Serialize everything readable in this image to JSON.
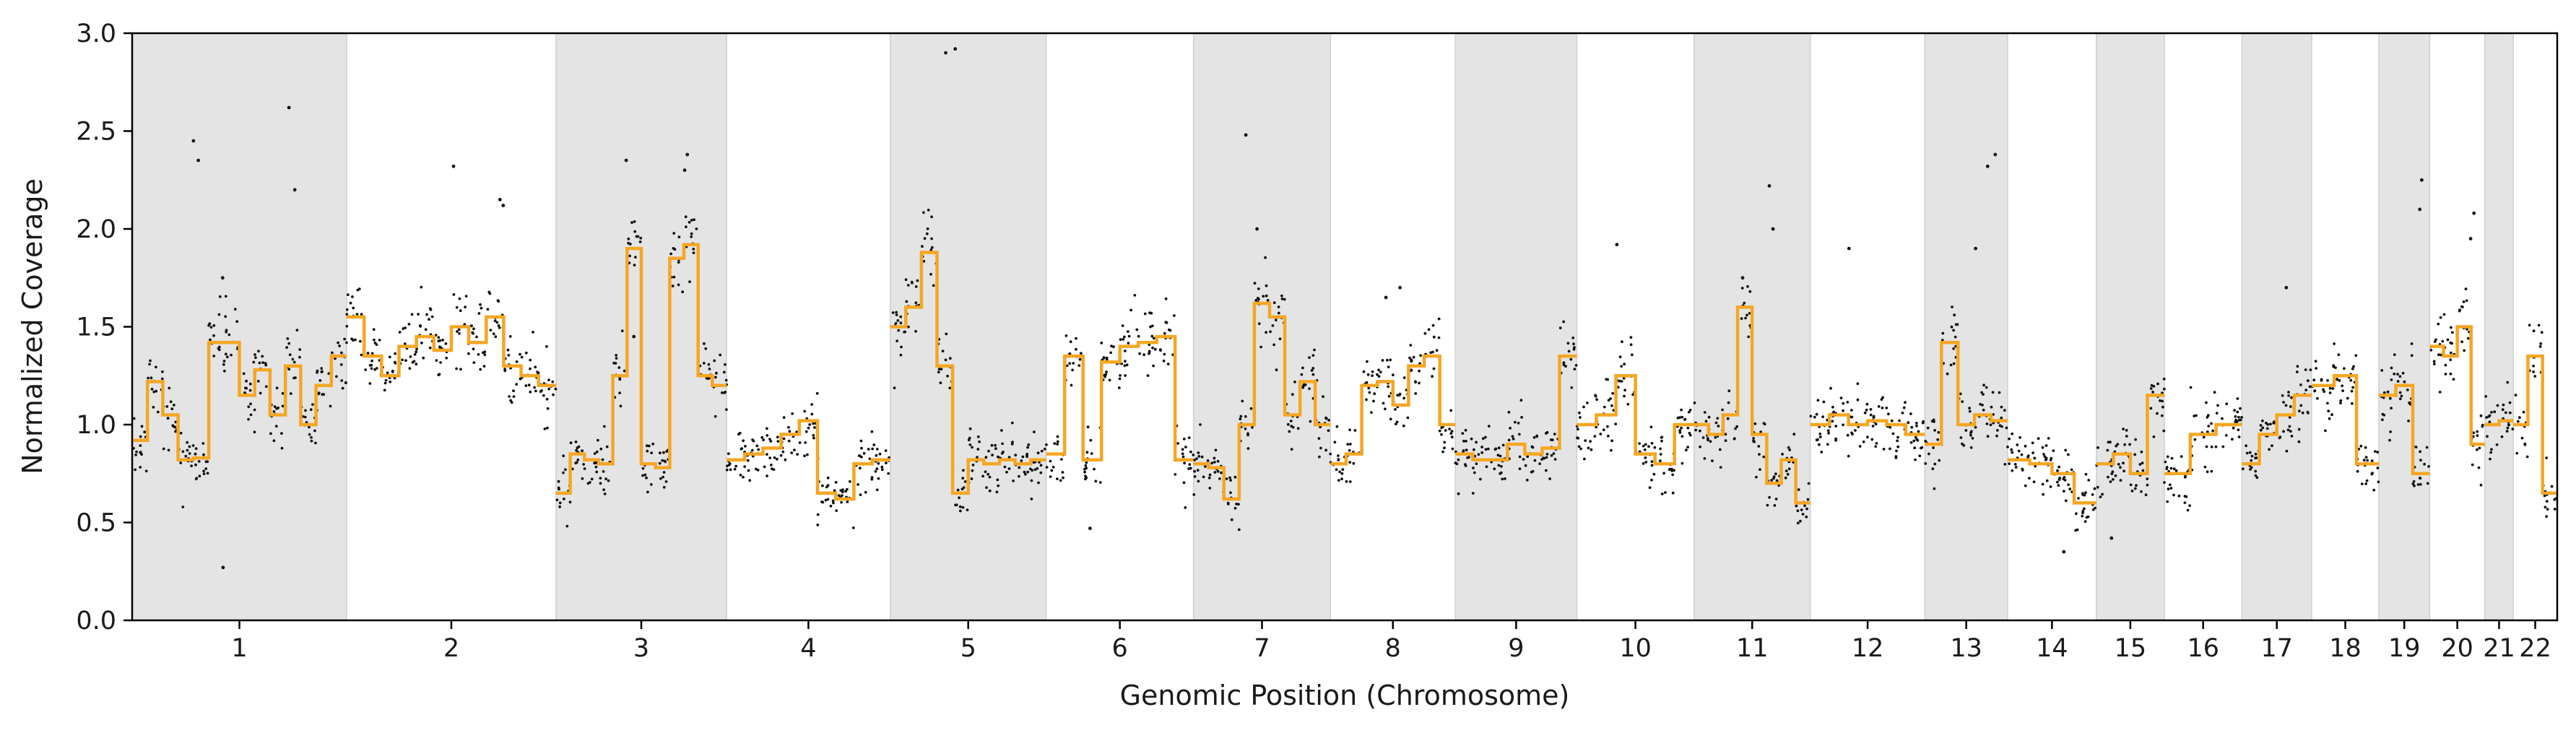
{
  "chart_data": {
    "type": "scatter",
    "xlabel": "Genomic Position (Chromosome)",
    "ylabel": "Normalized Coverage",
    "ylim": [
      0,
      3
    ],
    "y_ticks": [
      "0.0",
      "0.5",
      "1.0",
      "1.5",
      "2.0",
      "2.5",
      "3.0"
    ],
    "grid": false,
    "legend": "none",
    "colors": {
      "points": "#111111",
      "segments": "#f5a623",
      "shading": "#e4e4e4",
      "shading_border": "#cfcfcf",
      "axes": "#000000"
    },
    "chromosomes": [
      {
        "label": "1",
        "length": 249,
        "shaded": true
      },
      {
        "label": "2",
        "length": 243,
        "shaded": false
      },
      {
        "label": "3",
        "length": 198,
        "shaded": true
      },
      {
        "label": "4",
        "length": 190,
        "shaded": false
      },
      {
        "label": "5",
        "length": 181,
        "shaded": true
      },
      {
        "label": "6",
        "length": 171,
        "shaded": false
      },
      {
        "label": "7",
        "length": 159,
        "shaded": true
      },
      {
        "label": "8",
        "length": 145,
        "shaded": false
      },
      {
        "label": "9",
        "length": 141,
        "shaded": true
      },
      {
        "label": "10",
        "length": 136,
        "shaded": false
      },
      {
        "label": "11",
        "length": 135,
        "shaded": true
      },
      {
        "label": "12",
        "length": 133,
        "shaded": false
      },
      {
        "label": "13",
        "length": 96,
        "shaded": true
      },
      {
        "label": "14",
        "length": 103,
        "shaded": false
      },
      {
        "label": "15",
        "length": 79,
        "shaded": true
      },
      {
        "label": "16",
        "length": 90,
        "shaded": false
      },
      {
        "label": "17",
        "length": 81,
        "shaded": true
      },
      {
        "label": "18",
        "length": 78,
        "shaded": false
      },
      {
        "label": "19",
        "length": 59,
        "shaded": true
      },
      {
        "label": "20",
        "length": 64,
        "shaded": false
      },
      {
        "label": "21",
        "length": 33,
        "shaded": true
      },
      {
        "label": "22",
        "length": 51,
        "shaded": false
      }
    ],
    "segments": [
      {
        "chrom": "1",
        "values": [
          0.92,
          1.22,
          1.05,
          0.82,
          0.83,
          1.42,
          1.42,
          1.15,
          1.28,
          1.05,
          1.3,
          1.0,
          1.2,
          1.35
        ]
      },
      {
        "chrom": "2",
        "values": [
          1.55,
          1.35,
          1.25,
          1.4,
          1.45,
          1.38,
          1.5,
          1.42,
          1.55,
          1.3,
          1.25,
          1.2
        ]
      },
      {
        "chrom": "3",
        "values": [
          0.65,
          0.85,
          0.82,
          0.8,
          1.25,
          1.9,
          0.8,
          0.78,
          1.85,
          1.92,
          1.25,
          1.2
        ]
      },
      {
        "chrom": "4",
        "values": [
          0.82,
          0.85,
          0.88,
          0.95,
          1.02,
          0.65,
          0.62,
          0.8,
          0.82
        ]
      },
      {
        "chrom": "5",
        "values": [
          1.5,
          1.6,
          1.88,
          1.3,
          0.65,
          0.82,
          0.8,
          0.82,
          0.8,
          0.82
        ]
      },
      {
        "chrom": "6",
        "values": [
          0.85,
          1.35,
          0.82,
          1.32,
          1.4,
          1.42,
          1.45,
          0.82
        ]
      },
      {
        "chrom": "7",
        "values": [
          0.8,
          0.78,
          0.62,
          1.0,
          1.62,
          1.55,
          1.05,
          1.22,
          1.0
        ]
      },
      {
        "chrom": "8",
        "values": [
          0.8,
          0.85,
          1.2,
          1.22,
          1.1,
          1.3,
          1.35,
          1.0
        ]
      },
      {
        "chrom": "9",
        "values": [
          0.85,
          0.82,
          0.82,
          0.9,
          0.85,
          0.88,
          1.35
        ]
      },
      {
        "chrom": "10",
        "values": [
          1.0,
          1.05,
          1.25,
          0.85,
          0.8,
          1.0
        ]
      },
      {
        "chrom": "11",
        "values": [
          1.0,
          0.95,
          1.05,
          1.6,
          0.95,
          0.7,
          0.82,
          0.6
        ]
      },
      {
        "chrom": "12",
        "values": [
          1.0,
          1.05,
          1.0,
          1.02,
          1.0,
          0.95
        ]
      },
      {
        "chrom": "13",
        "values": [
          0.9,
          1.42,
          1.0,
          1.05,
          1.02
        ]
      },
      {
        "chrom": "14",
        "values": [
          0.82,
          0.8,
          0.75,
          0.6
        ]
      },
      {
        "chrom": "15",
        "values": [
          0.8,
          0.85,
          0.75,
          1.15
        ]
      },
      {
        "chrom": "16",
        "values": [
          0.75,
          0.95,
          1.0
        ]
      },
      {
        "chrom": "17",
        "values": [
          0.8,
          0.95,
          1.05,
          1.15
        ]
      },
      {
        "chrom": "18",
        "values": [
          1.2,
          1.25,
          0.8
        ]
      },
      {
        "chrom": "19",
        "values": [
          1.15,
          1.2,
          0.75
        ]
      },
      {
        "chrom": "20",
        "values": [
          1.4,
          1.35,
          1.5,
          0.9
        ]
      },
      {
        "chrom": "21",
        "values": [
          1.0,
          1.02
        ]
      },
      {
        "chrom": "22",
        "values": [
          1.0,
          1.35,
          0.65
        ]
      }
    ],
    "outliers": [
      {
        "chrom": "1",
        "values": [
          2.45,
          2.35,
          2.2,
          2.62,
          0.27,
          1.75
        ]
      },
      {
        "chrom": "2",
        "values": [
          2.15,
          2.32,
          2.12
        ]
      },
      {
        "chrom": "3",
        "values": [
          2.38,
          2.35,
          2.3,
          1.45
        ]
      },
      {
        "chrom": "5",
        "values": [
          2.92,
          2.9
        ]
      },
      {
        "chrom": "6",
        "values": [
          0.47
        ]
      },
      {
        "chrom": "7",
        "values": [
          2.48,
          2.0
        ]
      },
      {
        "chrom": "8",
        "values": [
          1.7,
          1.65
        ]
      },
      {
        "chrom": "10",
        "values": [
          1.92
        ]
      },
      {
        "chrom": "11",
        "values": [
          2.22,
          2.0,
          1.75
        ]
      },
      {
        "chrom": "12",
        "values": [
          1.9
        ]
      },
      {
        "chrom": "13",
        "values": [
          2.38,
          2.32,
          1.9
        ]
      },
      {
        "chrom": "14",
        "values": [
          0.35
        ]
      },
      {
        "chrom": "15",
        "values": [
          0.42
        ]
      },
      {
        "chrom": "17",
        "values": [
          1.7
        ]
      },
      {
        "chrom": "19",
        "values": [
          2.25,
          2.1
        ]
      },
      {
        "chrom": "20",
        "values": [
          2.08,
          1.95
        ]
      }
    ]
  }
}
